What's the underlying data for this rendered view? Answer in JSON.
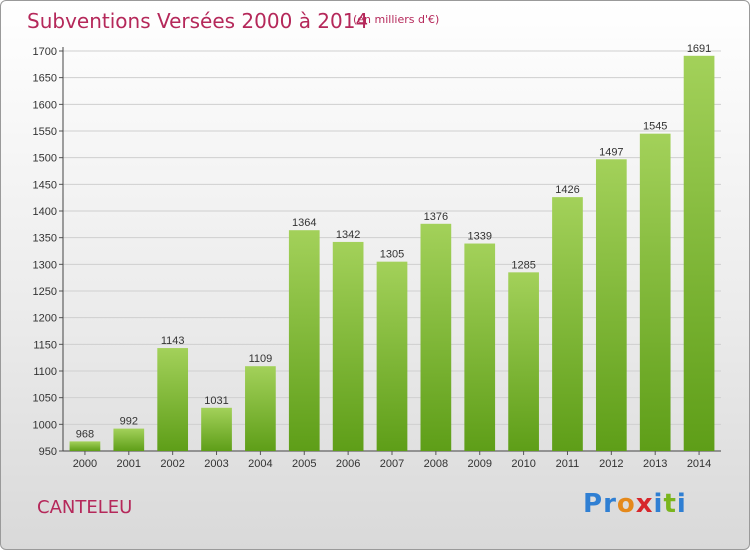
{
  "header": {
    "title": "Subventions Versées 2000 à 2014",
    "units": "(en milliers d'€)"
  },
  "footer": {
    "city": "CANTELEU",
    "brand": "Proxiti"
  },
  "colors": {
    "title": "#b5285a",
    "bar_top": "#a3d15a",
    "bar_bottom": "#5e9e18",
    "brand_letters": [
      "#2f7fd3",
      "#2f7fd3",
      "#e5891b",
      "#d7262b",
      "#2f7fd3",
      "#7ab51d",
      "#2f7fd3"
    ]
  },
  "chart_data": {
    "type": "bar",
    "title": "Subventions Versées 2000 à 2014",
    "categories": [
      "2000",
      "2001",
      "2002",
      "2003",
      "2004",
      "2005",
      "2006",
      "2007",
      "2008",
      "2009",
      "2010",
      "2011",
      "2012",
      "2013",
      "2014"
    ],
    "values": [
      968,
      992,
      1143,
      1031,
      1109,
      1364,
      1342,
      1305,
      1376,
      1339,
      1285,
      1426,
      1497,
      1545,
      1691
    ],
    "ylim": [
      950,
      1700
    ],
    "yticks": [
      950,
      1000,
      1050,
      1100,
      1150,
      1200,
      1250,
      1300,
      1350,
      1400,
      1450,
      1500,
      1550,
      1600,
      1650,
      1700
    ],
    "grid": true,
    "xlabel": "",
    "ylabel": ""
  }
}
